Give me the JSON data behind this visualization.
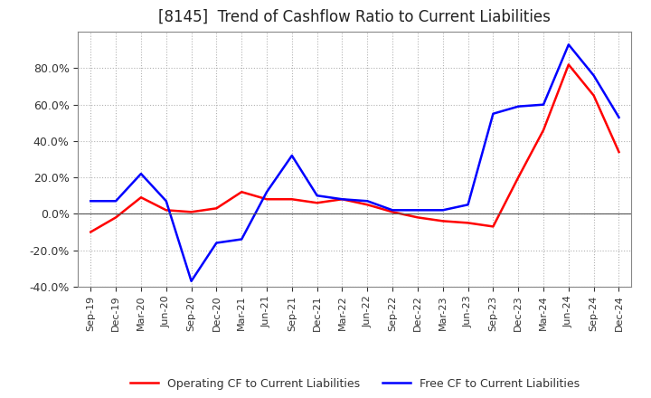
{
  "title": "[8145]  Trend of Cashflow Ratio to Current Liabilities",
  "labels": [
    "Sep-19",
    "Dec-19",
    "Mar-20",
    "Jun-20",
    "Sep-20",
    "Dec-20",
    "Mar-21",
    "Jun-21",
    "Sep-21",
    "Dec-21",
    "Mar-22",
    "Jun-22",
    "Sep-22",
    "Dec-22",
    "Mar-23",
    "Jun-23",
    "Sep-23",
    "Dec-23",
    "Mar-24",
    "Jun-24",
    "Sep-24",
    "Dec-24"
  ],
  "operating_cf": [
    -0.1,
    -0.02,
    0.09,
    0.02,
    0.01,
    0.03,
    0.12,
    0.08,
    0.08,
    0.06,
    0.08,
    0.05,
    0.01,
    -0.02,
    -0.04,
    -0.05,
    -0.07,
    0.2,
    0.46,
    0.82,
    0.65,
    0.34
  ],
  "free_cf": [
    0.07,
    0.07,
    0.22,
    0.07,
    -0.37,
    -0.16,
    -0.14,
    0.12,
    0.32,
    0.1,
    0.08,
    0.07,
    0.02,
    0.02,
    0.02,
    0.05,
    0.55,
    0.59,
    0.6,
    0.93,
    0.76,
    0.53
  ],
  "operating_color": "#ff0000",
  "free_color": "#0000ff",
  "ylim": [
    -0.4,
    1.0
  ],
  "yticks": [
    -0.4,
    -0.2,
    0.0,
    0.2,
    0.4,
    0.6,
    0.8
  ],
  "background_color": "#ffffff",
  "grid_color": "#aaaaaa",
  "title_fontsize": 12,
  "legend_operating": "Operating CF to Current Liabilities",
  "legend_free": "Free CF to Current Liabilities"
}
